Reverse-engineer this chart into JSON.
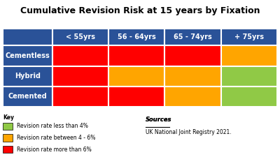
{
  "title": "Cumulative Revision Risk at 15 years by Fixation",
  "col_headers": [
    "< 55yrs",
    "56 - 64yrs",
    "65 - 74yrs",
    "+ 75yrs"
  ],
  "row_headers": [
    "Cementless",
    "Hybrid",
    "Cemented"
  ],
  "header_bg": "#2a5298",
  "row_header_bg": "#2a5298",
  "cell_colors": [
    [
      "#ff0000",
      "#ff0000",
      "#ff0000",
      "#ffa500"
    ],
    [
      "#ff0000",
      "#ffa500",
      "#ffa500",
      "#90c946"
    ],
    [
      "#ff0000",
      "#ff0000",
      "#ffa500",
      "#90c946"
    ]
  ],
  "legend_colors": [
    "#90c946",
    "#ffa500",
    "#ff0000"
  ],
  "legend_labels": [
    "Revision rate less than 4%",
    "Revision rate between 4 - 6%",
    "Revision rate more than 6%"
  ],
  "sources_title": "Sources",
  "sources_text": "UK National Joint Registry 2021.",
  "background_color": "#ffffff",
  "header_text_color": "#ffffff",
  "title_color": "#000000",
  "grid_line_color": "#ffffff"
}
